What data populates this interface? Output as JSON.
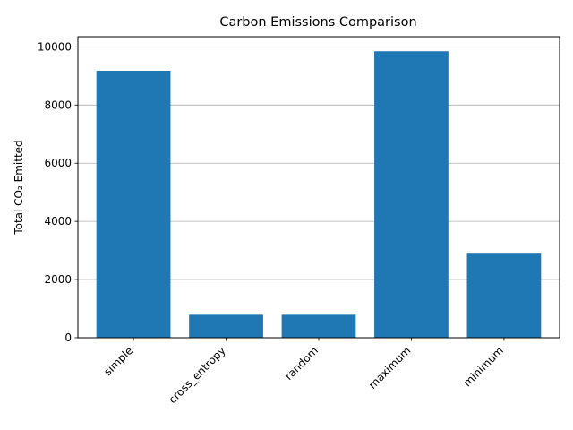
{
  "chart_data": {
    "type": "bar",
    "title": "Carbon Emissions Comparison",
    "xlabel": "",
    "ylabel": "Total CO₂ Emitted",
    "categories": [
      "simple",
      "cross_entropy",
      "random",
      "maximum",
      "minimum"
    ],
    "values": [
      9180,
      790,
      790,
      9850,
      2920
    ],
    "ylim": [
      0,
      10350
    ],
    "yticks": [
      0,
      2000,
      4000,
      6000,
      8000,
      10000
    ],
    "grid": "y",
    "legend": "none",
    "colors": {
      "bar": "#1f77b4",
      "grid": "#b0b0b0",
      "axis": "#000000"
    }
  }
}
